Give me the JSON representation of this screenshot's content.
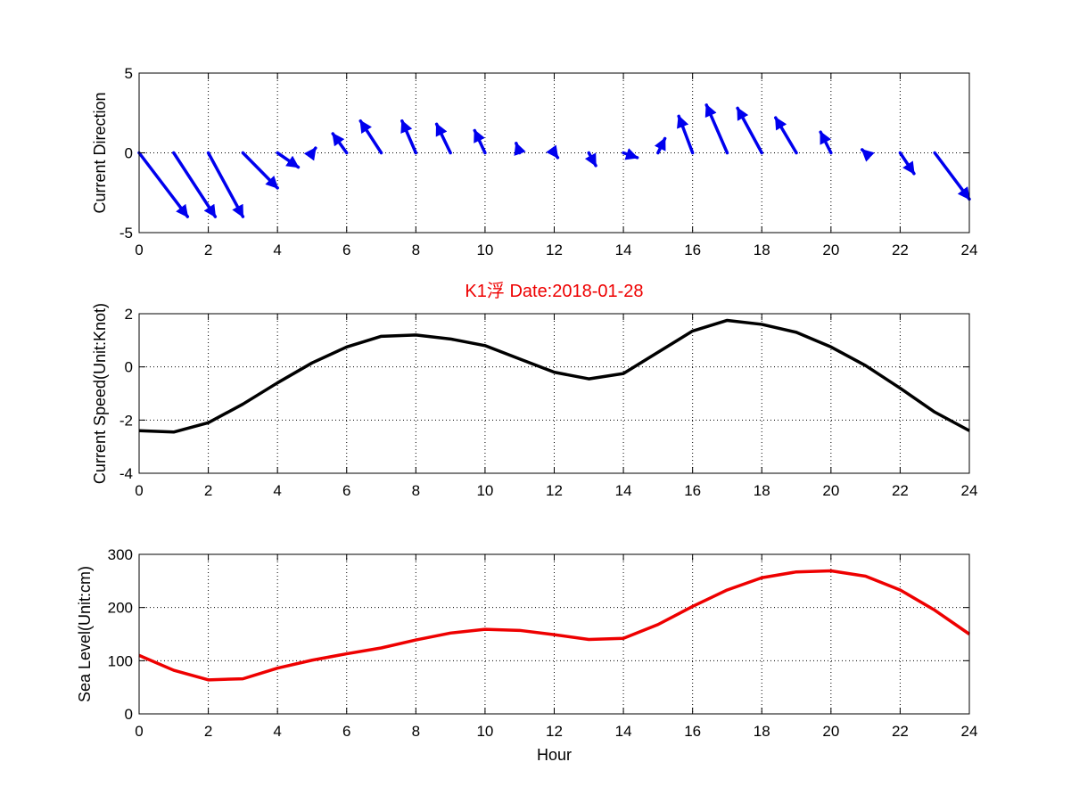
{
  "chart_data": [
    {
      "type": "quiver",
      "title": "",
      "xlabel": "",
      "ylabel": "Current Direction",
      "xlim": [
        0,
        24
      ],
      "ylim": [
        -5,
        5
      ],
      "xticks": [
        "0",
        "2",
        "4",
        "6",
        "8",
        "10",
        "12",
        "14",
        "16",
        "18",
        "20",
        "22",
        "24"
      ],
      "yticks": [
        "-5",
        "0",
        "5"
      ],
      "grid": true,
      "color": "#0000ee",
      "x": [
        0,
        1,
        2,
        3,
        4,
        5,
        6,
        7,
        8,
        9,
        10,
        11,
        12,
        13,
        14,
        15,
        16,
        17,
        18,
        19,
        20,
        21,
        22,
        23
      ],
      "u": [
        1.4,
        1.2,
        1.0,
        1.0,
        0.6,
        0.1,
        -0.4,
        -0.6,
        -0.4,
        -0.4,
        -0.3,
        -0.1,
        0.1,
        0.2,
        0.4,
        0.2,
        -0.4,
        -0.6,
        -0.7,
        -0.6,
        -0.3,
        -0.1,
        0.4,
        1.0
      ],
      "v": [
        -4.0,
        -4.0,
        -4.0,
        -2.2,
        -0.9,
        0.3,
        1.2,
        2.0,
        2.0,
        1.8,
        1.4,
        0.6,
        -0.3,
        -0.8,
        -0.3,
        0.9,
        2.3,
        3.0,
        2.8,
        2.2,
        1.3,
        0.2,
        -1.3,
        -2.9
      ]
    },
    {
      "type": "line",
      "title": "K1浮    Date:2018-01-28",
      "title_color": "#ee0000",
      "xlabel": "",
      "ylabel": "Current Speed(Unit:Knot)",
      "xlim": [
        0,
        24
      ],
      "ylim": [
        -4,
        2
      ],
      "xticks": [
        "0",
        "2",
        "4",
        "6",
        "8",
        "10",
        "12",
        "14",
        "16",
        "18",
        "20",
        "22",
        "24"
      ],
      "yticks": [
        "-4",
        "-2",
        "0",
        "2"
      ],
      "grid": true,
      "color": "#000000",
      "x": [
        0,
        1,
        2,
        3,
        4,
        5,
        6,
        7,
        8,
        9,
        10,
        11,
        12,
        13,
        14,
        15,
        16,
        17,
        18,
        19,
        20,
        21,
        22,
        23,
        24
      ],
      "y": [
        -2.4,
        -2.45,
        -2.1,
        -1.4,
        -0.6,
        0.15,
        0.75,
        1.15,
        1.2,
        1.05,
        0.8,
        0.3,
        -0.2,
        -0.45,
        -0.25,
        0.55,
        1.35,
        1.75,
        1.6,
        1.3,
        0.75,
        0.05,
        -0.8,
        -1.7,
        -2.4
      ]
    },
    {
      "type": "line",
      "title": "",
      "xlabel": "Hour",
      "ylabel": "Sea Level(Unit:cm)",
      "xlim": [
        0,
        24
      ],
      "ylim": [
        0,
        300
      ],
      "xticks": [
        "0",
        "2",
        "4",
        "6",
        "8",
        "10",
        "12",
        "14",
        "16",
        "18",
        "20",
        "22",
        "24"
      ],
      "yticks": [
        "0",
        "100",
        "200",
        "300"
      ],
      "grid": true,
      "color": "#ee0000",
      "x": [
        0,
        1,
        2,
        3,
        4,
        5,
        6,
        7,
        8,
        9,
        10,
        11,
        12,
        13,
        14,
        15,
        16,
        17,
        18,
        19,
        20,
        21,
        22,
        23,
        24
      ],
      "y": [
        110,
        82,
        64,
        66,
        86,
        101,
        113,
        124,
        139,
        152,
        159,
        157,
        149,
        140,
        142,
        168,
        202,
        233,
        256,
        267,
        269,
        259,
        233,
        195,
        150
      ]
    }
  ]
}
